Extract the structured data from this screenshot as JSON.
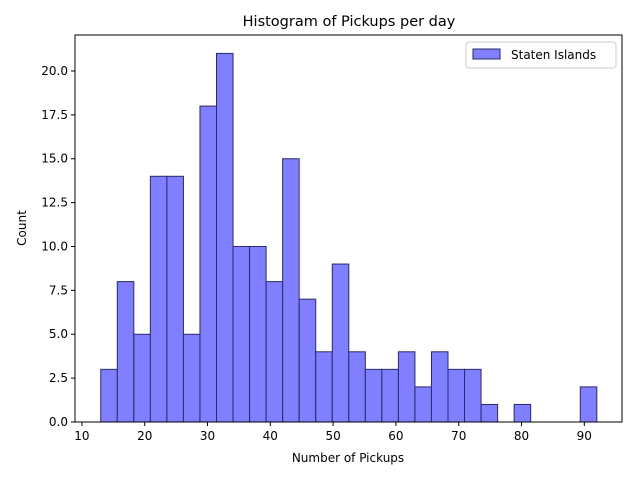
{
  "chart_data": {
    "type": "bar",
    "title": "Histogram of Pickups per day",
    "xlabel": "Number of Pickups",
    "ylabel": "Count",
    "xlim": [
      8.9,
      96.0
    ],
    "ylim": [
      0,
      22.05
    ],
    "xticks": [
      10,
      20,
      30,
      40,
      50,
      60,
      70,
      80,
      90
    ],
    "xtick_labels": [
      "10",
      "20",
      "30",
      "40",
      "50",
      "60",
      "70",
      "80",
      "90"
    ],
    "yticks": [
      0,
      2.5,
      5,
      7.5,
      10,
      12.5,
      15,
      17.5,
      20
    ],
    "ytick_labels": [
      "0.0",
      "2.5",
      "5.0",
      "7.5",
      "10.0",
      "12.5",
      "15.0",
      "17.5",
      "20.0"
    ],
    "bin_start": 13,
    "bin_width": 2.633,
    "values": [
      3,
      8,
      5,
      14,
      14,
      5,
      18,
      21,
      10,
      10,
      8,
      15,
      7,
      4,
      9,
      4,
      3,
      3,
      4,
      2,
      4,
      3,
      3,
      1,
      0,
      1,
      0,
      0,
      0,
      2
    ],
    "series": [
      {
        "name": "Staten Islands",
        "color": "#7f7fff",
        "edge_color": "#2a2a66"
      }
    ],
    "legend_position": "top-right",
    "grid": false
  }
}
